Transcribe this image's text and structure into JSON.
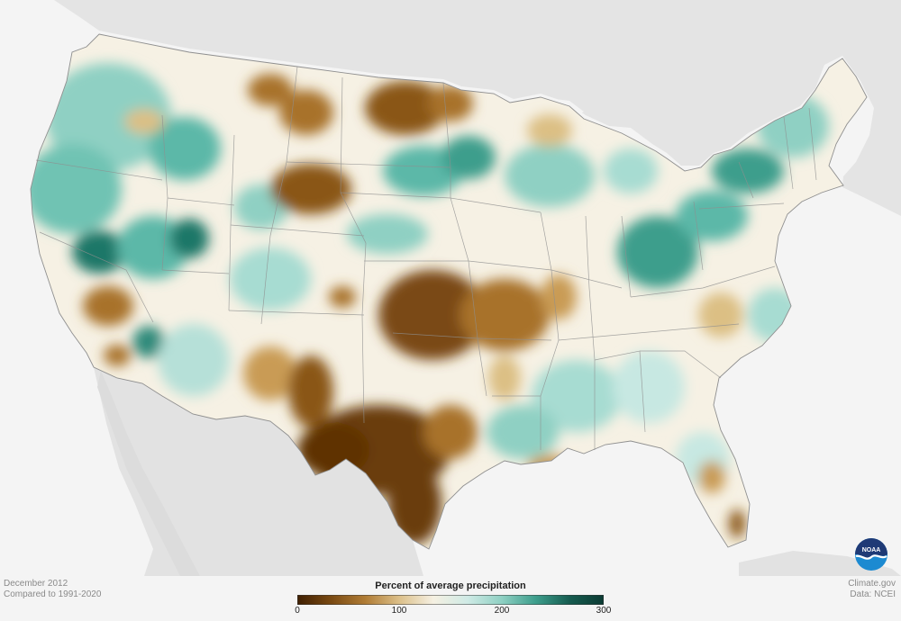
{
  "map": {
    "subject": "Percent of average precipitation across the contiguous United States, December 2012",
    "colors": {
      "land": "#f2f2f2",
      "ocean": "#ffffff",
      "neighbor_land": "#e2e2e2",
      "neighbor_land_far": "#d8d8d8",
      "state_border": "#8f8f8f",
      "dry_strong": "#6b3c07",
      "dry": "#a8722a",
      "dry_light": "#dcbf84",
      "near_normal": "#f6f1e4",
      "wet_light": "#c7e8e2",
      "wet": "#5cb8a8",
      "wet_strong": "#1b7767"
    }
  },
  "legend": {
    "title": "Percent of average precipitation",
    "ticks": [
      "0",
      "100",
      "200",
      "300"
    ],
    "gradient": [
      "#3f1f02",
      "#7a4a12",
      "#b07c35",
      "#dcc08a",
      "#f5f0e2",
      "#cfeae5",
      "#8fd0c3",
      "#3d9e8c",
      "#165c50",
      "#0c3b33"
    ]
  },
  "footer": {
    "period": "December 2012",
    "baseline": "Compared to 1991-2020",
    "site": "Climate.gov",
    "source": "Data: NCEI"
  },
  "logo": {
    "text": "NOAA",
    "colors": {
      "top": "#1f3a76",
      "bottom": "#1c8ad1",
      "wave": "#ffffff"
    }
  }
}
